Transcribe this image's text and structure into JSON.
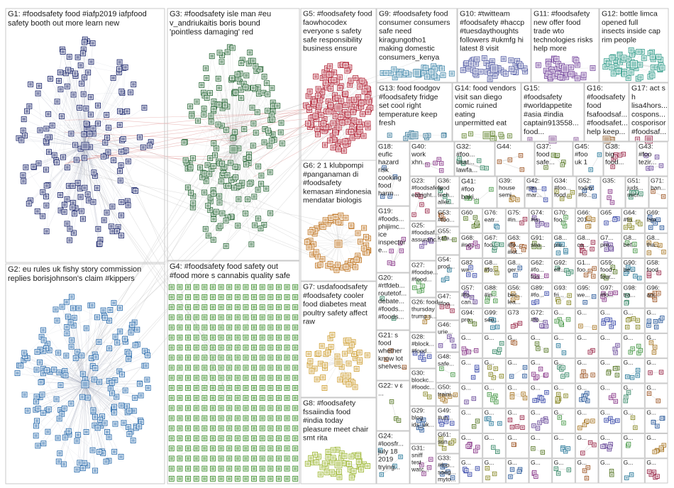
{
  "groups": [
    {
      "id": "G1",
      "lines": [
        "G1: #foodsafety food #iafp2019 iafpfood",
        "safety booth out more learn new"
      ],
      "color": "#1f2a6e"
    },
    {
      "id": "G2",
      "lines": [
        "G2: eu rules uk fishy story commission",
        "replies borisjohnson's claim #kippers"
      ],
      "color": "#2f6fae"
    },
    {
      "id": "G3",
      "lines": [
        "G3: #foodsafety isle man #eu",
        "v_andriukaitis boris bound",
        "'pointless damaging' red"
      ],
      "color": "#2e6b3c"
    },
    {
      "id": "G4",
      "lines": [
        "G4: #foodsafety food safety out",
        "#food more s cannabis quality safe"
      ],
      "color": "#3f8f2f"
    },
    {
      "id": "G5",
      "lines": [
        "G5: #foodsafety food",
        "faowhocodex",
        "everyone s safety",
        "safe responsibility",
        "business ensure"
      ],
      "color": "#b3283a"
    },
    {
      "id": "G6",
      "lines": [
        "G6: 2 1 klubpompi",
        "#panganaman di",
        "#foodsafety",
        "kemasan #indonesia",
        "mendatar biologis"
      ],
      "color": "#c27a2a"
    },
    {
      "id": "G7",
      "lines": [
        "G7: usdafoodsafety",
        "#foodsafety cooler",
        "food diabetes meat",
        "poultry safety affect",
        "raw"
      ],
      "color": "#d0a23a"
    },
    {
      "id": "G8",
      "lines": [
        "G8: #foodsafety",
        "fssaiindia food",
        "#india today",
        "pleasure meet chair",
        "smt rita"
      ],
      "color": "#a0b93a"
    },
    {
      "id": "G9",
      "lines": [
        "G9: #foodsafety food",
        "consumer consumers",
        "safe need",
        "kiragungotho1",
        "making domestic",
        "consumers_kenya"
      ],
      "color": "#4d8fb0"
    },
    {
      "id": "G10",
      "lines": [
        "G10: #twitteam",
        "#foodsafety #haccp",
        "#tuesdaythoughts",
        "followers #ukmfg hi",
        "latest 8 visit"
      ],
      "color": "#5a63a8"
    },
    {
      "id": "G11",
      "lines": [
        "G11: #foodsafety",
        "new offer food",
        "trade wto",
        "technologies risks",
        "help more"
      ],
      "color": "#7a4da0"
    },
    {
      "id": "G12",
      "lines": [
        "G12: bottle limca",
        "opened full",
        "insects inside cap",
        "rim people"
      ],
      "color": "#3aa08f"
    },
    {
      "id": "G13",
      "lines": [
        "G13: food foodgov",
        "#foodsafety fridge",
        "set cool right",
        "temperature keep",
        "fresh"
      ],
      "color": "#3a7a9a"
    },
    {
      "id": "G14",
      "lines": [
        "G14: food vendors",
        "visit san diego",
        "comic ruined",
        "eating",
        "unpermitted eat"
      ],
      "color": "#6a8a3a"
    },
    {
      "id": "G15",
      "lines": [
        "G15:",
        "#foodsafety",
        "#worldappetite",
        "#asia #india",
        "captain913558...",
        "food..."
      ],
      "color": "#8a5a9a"
    },
    {
      "id": "G16",
      "lines": [
        "G16:",
        "#foodsafety",
        "food",
        "fsafoodsaf...",
        "#foodsafet...",
        "help keep..."
      ],
      "color": "#9a6a3a"
    },
    {
      "id": "G17",
      "lines": [
        "G17: act s",
        "h",
        "lisa4hors...",
        "cospons...",
        "cosporisor",
        "#foodsaf..."
      ],
      "color": "#a03a5a"
    }
  ],
  "small_groups": [
    {
      "id": "G18",
      "lines": [
        "G18:",
        "eufic",
        "hazard",
        "risk",
        "cooking",
        "food",
        "harm..."
      ]
    },
    {
      "id": "G19",
      "lines": [
        "G19:",
        "#foods...",
        "phijimc...",
        "ice",
        "inspector",
        "e..."
      ]
    },
    {
      "id": "G20",
      "lines": [
        "G20:",
        "#rtfdeb...",
        "routetof...",
        "debate...",
        "#foods...",
        "#foods..."
      ]
    },
    {
      "id": "G21",
      "lines": [
        "G21: s",
        "food",
        "whether",
        "know lot",
        "shelves..."
      ]
    },
    {
      "id": "G22",
      "lines": [
        "G22: ν ε",
        "..."
      ]
    },
    {
      "id": "G24",
      "lines": [
        "G24:",
        "#loosfr...",
        "july 18",
        "2019",
        "trying..."
      ]
    },
    {
      "id": "G23",
      "lines": [
        "G23:",
        "#foodsafety",
        "eatright..."
      ]
    },
    {
      "id": "G25",
      "lines": [
        "G25:",
        "#foodsaf...",
        "assuranc..."
      ]
    },
    {
      "id": "G27",
      "lines": [
        "G27:",
        "#foodse...",
        "#food..."
      ]
    },
    {
      "id": "G26",
      "lines": [
        "G26: food",
        "thursday",
        "trump s..."
      ]
    },
    {
      "id": "G28",
      "lines": [
        "G28:",
        "#block...",
        "#food..."
      ]
    },
    {
      "id": "G30",
      "lines": [
        "G30:",
        "blockc...",
        "#foodc..."
      ]
    },
    {
      "id": "G29",
      "lines": [
        "G29:",
        "blog",
        "ids_uk..."
      ]
    },
    {
      "id": "G31",
      "lines": [
        "G31:",
        "sniff",
        "test",
        "watc..."
      ]
    },
    {
      "id": "G36",
      "lines": [
        "G36:",
        "food",
        "tech...",
        "aller..."
      ]
    },
    {
      "id": "G53",
      "lines": [
        "G53:",
        "#foo..."
      ]
    },
    {
      "id": "G55",
      "lines": [
        "G55:",
        "kafe..."
      ]
    },
    {
      "id": "G54",
      "lines": [
        "G54:",
        "prod..."
      ]
    },
    {
      "id": "G47",
      "lines": [
        "G47:",
        "#foo..."
      ]
    },
    {
      "id": "G46",
      "lines": [
        "G46:",
        "urie..."
      ]
    },
    {
      "id": "G48",
      "lines": [
        "G48:",
        "safe..."
      ]
    },
    {
      "id": "G50",
      "lines": [
        "G50:",
        "traini..."
      ]
    },
    {
      "id": "G49",
      "lines": [
        "G49:",
        "#un..."
      ]
    },
    {
      "id": "G61",
      "lines": [
        "G61:",
        "sun..."
      ]
    },
    {
      "id": "G33",
      "lines": [
        "G33:",
        "#foo...",
        "saeg...",
        "myto..."
      ]
    },
    {
      "id": "G40",
      "lines": [
        "G40:",
        "work",
        "xhn..."
      ]
    },
    {
      "id": "G32",
      "lines": [
        "G32:",
        "#foo...",
        "usat...",
        "lawfa..."
      ]
    },
    {
      "id": "G44",
      "lines": [
        "G44:"
      ]
    },
    {
      "id": "G37",
      "lines": [
        "G37:",
        "food",
        "safe..."
      ]
    },
    {
      "id": "G45",
      "lines": [
        "G45:",
        "#foo",
        "uk 1"
      ]
    },
    {
      "id": "G38",
      "lines": [
        "G38:",
        "big",
        "food..."
      ]
    },
    {
      "id": "G43",
      "lines": [
        "G43:",
        "#foo",
        "tezir..."
      ]
    },
    {
      "id": "G41",
      "lines": [
        "G41:",
        "#foo",
        "baki..."
      ]
    },
    {
      "id": "G39",
      "lines": [
        "G39:",
        "house",
        "semi..."
      ]
    },
    {
      "id": "G42",
      "lines": [
        "G42:",
        "nan...",
        "mar..."
      ]
    },
    {
      "id": "G34",
      "lines": [
        "G34:",
        "#foo...",
        "food..."
      ]
    },
    {
      "id": "G52",
      "lines": [
        "G52:",
        "today",
        "#fo..."
      ]
    },
    {
      "id": "G35",
      "lines": [
        "G35:"
      ]
    },
    {
      "id": "G51",
      "lines": [
        "G51:",
        "juds...",
        "micr..."
      ]
    },
    {
      "id": "G71",
      "lines": [
        "G71:",
        "ban..."
      ]
    },
    {
      "id": "G60",
      "lines": [
        "G60"
      ]
    },
    {
      "id": "G76",
      "lines": [
        "G76:",
        "eatr..."
      ]
    },
    {
      "id": "G75",
      "lines": [
        "G75:",
        "#in..."
      ]
    },
    {
      "id": "G74",
      "lines": [
        "G74:",
        "#is..."
      ]
    },
    {
      "id": "G70",
      "lines": [
        "G70:",
        "foo..."
      ]
    },
    {
      "id": "G66",
      "lines": [
        "G66:",
        "201..."
      ]
    },
    {
      "id": "G65",
      "lines": [
        "G65"
      ]
    },
    {
      "id": "G64",
      "lines": [
        "G64:",
        "#fo..."
      ]
    },
    {
      "id": "G69",
      "lines": [
        "G69:",
        "late..."
      ]
    },
    {
      "id": "G68",
      "lines": [
        "G68:",
        "#no..."
      ]
    },
    {
      "id": "G67",
      "lines": [
        "G67:",
        "foo..."
      ]
    },
    {
      "id": "G63",
      "lines": [
        "G63:",
        "#fo...",
        "#iot..."
      ]
    },
    {
      "id": "G91",
      "lines": [
        "G91:",
        "sea..."
      ]
    },
    {
      "id": "G8x1",
      "lines": [
        "G8...",
        "plu..."
      ]
    },
    {
      "id": "G8x2",
      "lines": [
        "G8...",
        "ca..."
      ]
    },
    {
      "id": "G7x1",
      "lines": [
        "G7...",
        "pre..."
      ]
    },
    {
      "id": "G8x3",
      "lines": [
        "G8...",
        "bef..."
      ]
    },
    {
      "id": "G8x4",
      "lines": [
        "G8...",
        "tha..."
      ]
    },
    {
      "id": "G82",
      "lines": [
        "G82",
        "wa..."
      ]
    },
    {
      "id": "G8x5",
      "lines": [
        "G8...",
        "#fo..."
      ]
    },
    {
      "id": "G8x6",
      "lines": [
        "G8...",
        "ger..."
      ]
    },
    {
      "id": "G62",
      "lines": [
        "G62:",
        "#fo...",
        "foo..."
      ]
    },
    {
      "id": "G92",
      "lines": [
        "G92:",
        "eff..."
      ]
    },
    {
      "id": "G1x",
      "lines": [
        "G1...",
        "foo..."
      ]
    },
    {
      "id": "G59",
      "lines": [
        "G59:",
        "food",
        "four..."
      ]
    },
    {
      "id": "G90",
      "lines": [
        "G90:",
        "be..."
      ]
    },
    {
      "id": "G58",
      "lines": [
        "G58:",
        "food"
      ]
    },
    {
      "id": "G57",
      "lines": [
        "G57:",
        "#fo...",
        "can..."
      ]
    },
    {
      "id": "G88",
      "lines": [
        "G88:",
        "#in..."
      ]
    },
    {
      "id": "G56",
      "lines": [
        "G56:",
        "bec...",
        "lea..."
      ]
    },
    {
      "id": "G89",
      "lines": [
        "G89:",
        "#fo..."
      ]
    },
    {
      "id": "G93",
      "lines": [
        "G93:",
        "fri..."
      ]
    },
    {
      "id": "G95",
      "lines": [
        "G95:",
        "we..."
      ]
    },
    {
      "id": "G97",
      "lines": [
        "G97:",
        "#fo..."
      ]
    },
    {
      "id": "G98",
      "lines": [
        "G98:",
        "tra..."
      ]
    },
    {
      "id": "G96",
      "lines": [
        "G96:",
        "ani..."
      ]
    },
    {
      "id": "G94",
      "lines": [
        "G94:",
        "pro..."
      ]
    },
    {
      "id": "G99",
      "lines": [
        "G99:",
        "see..."
      ]
    },
    {
      "id": "G73",
      "lines": [
        "G73"
      ]
    },
    {
      "id": "G72",
      "lines": [
        "G72:",
        "#fo..."
      ]
    }
  ],
  "small_group_colors": [
    "#2b5a9a",
    "#8a3a8a",
    "#3a8a6a",
    "#a05a2a",
    "#5a7a2a",
    "#2a7a9a",
    "#9a2a4a",
    "#6a4a9a",
    "#4a9a4a",
    "#aa7a2a",
    "#3a4aaa",
    "#8a8a2a"
  ],
  "filler_tile_label": "G..."
}
